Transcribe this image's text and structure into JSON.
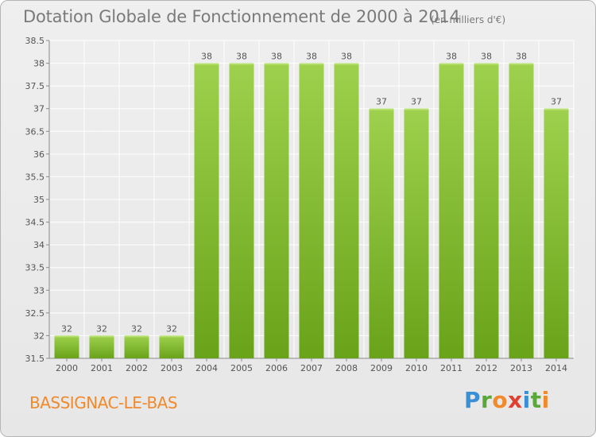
{
  "header": {
    "title": "Dotation Globale de Fonctionnement de 2000 à 2014",
    "subtitle": "(en milliers d'€)"
  },
  "footer": {
    "commune": "BASSIGNAC-LE-BAS",
    "brand": "Proxiti"
  },
  "colors": {
    "bar_top": "#9ed14d",
    "bar_bottom": "#69a31a",
    "grid": "#ffffff",
    "title": "#7a7a7a",
    "commune": "#f08a2c"
  },
  "chart_data": {
    "type": "bar",
    "categories": [
      "2000",
      "2001",
      "2002",
      "2003",
      "2004",
      "2005",
      "2006",
      "2007",
      "2008",
      "2009",
      "2010",
      "2011",
      "2012",
      "2013",
      "2014"
    ],
    "values": [
      32,
      32,
      32,
      32,
      38,
      38,
      38,
      38,
      38,
      37,
      37,
      38,
      38,
      38,
      37
    ],
    "ylim": [
      31.5,
      38.5
    ],
    "yticks": [
      "31.5",
      "32",
      "32.5",
      "33",
      "33.5",
      "34",
      "34.5",
      "35",
      "35.5",
      "36",
      "36.5",
      "37",
      "37.5",
      "38",
      "38.5"
    ],
    "grid": true,
    "legend": "none"
  }
}
